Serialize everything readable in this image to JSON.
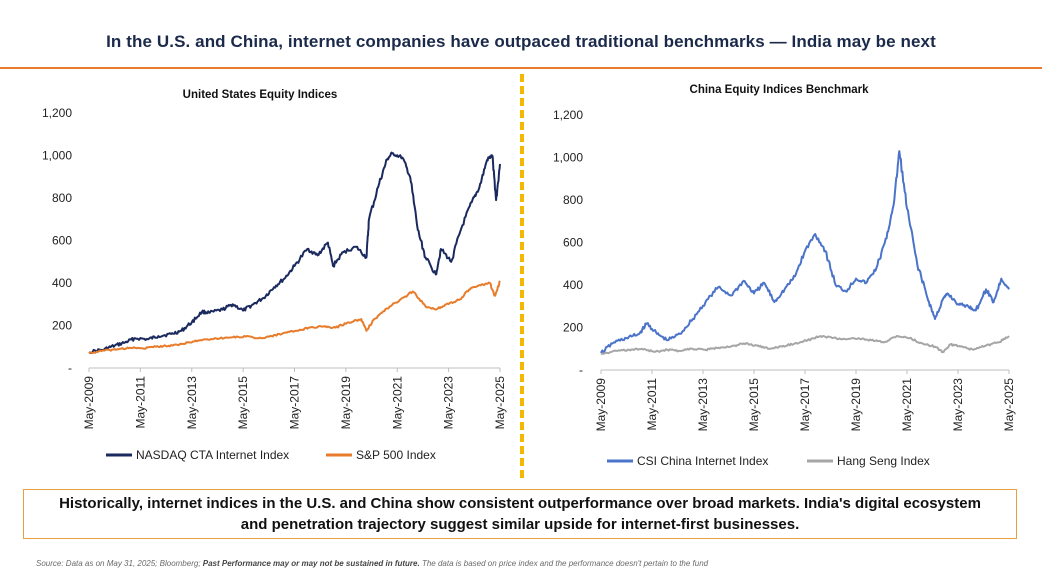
{
  "title": "In the U.S. and China, internet companies have outpaced traditional benchmarks — India may be next",
  "callout": "Historically, internet indices in the U.S. and China show consistent outperformance over broad markets. India's digital ecosystem and penetration trajectory suggest similar upside for internet-first businesses.",
  "source": {
    "prefix": "Source: Data as on May 31, 2025; Bloomberg; ",
    "emphasis": "Past Performance may or may not be sustained in future.",
    "suffix": " The data is based on price index and the performance doesn't pertain to the fund"
  },
  "colors": {
    "accent_orange": "#e87c2b",
    "divider_yellow": "#f5b800",
    "callout_border": "#e6a23c"
  },
  "chart_data": [
    {
      "type": "line",
      "title": "United States Equity Indices",
      "ylim": [
        0,
        1200
      ],
      "y_ticks": [
        "-",
        "200",
        "400",
        "600",
        "800",
        "1,000",
        "1,200"
      ],
      "x_ticks": [
        "May-2009",
        "May-2011",
        "May-2013",
        "May-2015",
        "May-2017",
        "May-2019",
        "May-2021",
        "May-2023",
        "May-2025"
      ],
      "xlim": [
        2009.4,
        2025.4
      ],
      "grid": false,
      "legend": "bottom",
      "series": [
        {
          "name": "NASDAQ CTA Internet Index",
          "color": "#1b2a5e",
          "x": [
            2009.4,
            2010.0,
            2010.4,
            2010.8,
            2011.2,
            2011.7,
            2012.1,
            2012.6,
            2013.0,
            2013.4,
            2013.8,
            2014.1,
            2014.6,
            2015.0,
            2015.4,
            2015.8,
            2016.2,
            2016.6,
            2017.0,
            2017.4,
            2017.9,
            2018.3,
            2018.7,
            2018.9,
            2019.3,
            2019.8,
            2020.2,
            2020.3,
            2020.7,
            2021.0,
            2021.2,
            2021.6,
            2021.9,
            2022.2,
            2022.5,
            2022.9,
            2023.1,
            2023.5,
            2023.9,
            2024.3,
            2024.6,
            2024.9,
            2025.1,
            2025.25,
            2025.4
          ],
          "values": [
            75,
            88,
            105,
            120,
            140,
            135,
            150,
            160,
            175,
            215,
            265,
            260,
            275,
            300,
            270,
            300,
            330,
            380,
            420,
            480,
            560,
            530,
            590,
            480,
            545,
            570,
            520,
            700,
            870,
            980,
            1010,
            990,
            900,
            650,
            520,
            440,
            560,
            500,
            660,
            780,
            850,
            980,
            1000,
            790,
            960
          ]
        },
        {
          "name": "S&P 500 Index",
          "color": "#e87c2b",
          "x": [
            2009.4,
            2010.0,
            2010.5,
            2011.0,
            2011.5,
            2012.0,
            2012.5,
            2013.0,
            2013.5,
            2014.0,
            2014.5,
            2015.0,
            2015.5,
            2016.0,
            2016.5,
            2017.0,
            2017.5,
            2018.0,
            2018.5,
            2019.0,
            2019.5,
            2020.0,
            2020.2,
            2020.5,
            2021.0,
            2021.5,
            2022.0,
            2022.5,
            2022.9,
            2023.3,
            2023.8,
            2024.2,
            2024.6,
            2025.0,
            2025.2,
            2025.4
          ],
          "values": [
            70,
            82,
            88,
            95,
            92,
            100,
            105,
            113,
            125,
            135,
            140,
            145,
            148,
            140,
            150,
            165,
            175,
            190,
            195,
            190,
            215,
            230,
            175,
            230,
            280,
            320,
            360,
            290,
            275,
            300,
            320,
            370,
            390,
            400,
            340,
            410
          ]
        }
      ]
    },
    {
      "type": "line",
      "title": "China Equity Indices Benchmark",
      "ylim": [
        0,
        1200
      ],
      "y_ticks": [
        "-",
        "200",
        "400",
        "600",
        "800",
        "1,000",
        "1,200"
      ],
      "x_ticks": [
        "May-2009",
        "May-2011",
        "May-2013",
        "May-2015",
        "May-2017",
        "May-2019",
        "May-2021",
        "May-2023",
        "May-2025"
      ],
      "xlim": [
        2009.4,
        2025.4
      ],
      "grid": false,
      "legend": "bottom",
      "series": [
        {
          "name": "CSI China Internet Index",
          "color": "#4a73c9",
          "x": [
            2009.4,
            2009.9,
            2010.4,
            2010.9,
            2011.2,
            2011.6,
            2012.0,
            2012.5,
            2013.0,
            2013.5,
            2014.0,
            2014.5,
            2015.0,
            2015.4,
            2015.8,
            2016.2,
            2016.6,
            2017.0,
            2017.4,
            2017.8,
            2018.2,
            2018.6,
            2019.0,
            2019.4,
            2019.8,
            2020.2,
            2020.6,
            2020.9,
            2021.1,
            2021.4,
            2021.8,
            2022.2,
            2022.5,
            2022.8,
            2023.0,
            2023.4,
            2023.8,
            2024.1,
            2024.5,
            2024.8,
            2025.1,
            2025.4
          ],
          "values": [
            80,
            130,
            150,
            170,
            220,
            170,
            140,
            170,
            240,
            320,
            390,
            350,
            420,
            360,
            410,
            320,
            380,
            440,
            560,
            640,
            560,
            400,
            370,
            430,
            410,
            480,
            620,
            800,
            1030,
            760,
            500,
            340,
            240,
            330,
            360,
            310,
            300,
            280,
            380,
            320,
            430,
            380
          ]
        },
        {
          "name": "Hang Seng Index",
          "color": "#a6a6a6",
          "x": [
            2009.4,
            2010.0,
            2010.5,
            2011.0,
            2011.5,
            2012.0,
            2012.5,
            2013.0,
            2013.5,
            2014.0,
            2014.5,
            2015.0,
            2015.5,
            2016.0,
            2016.5,
            2017.0,
            2017.5,
            2018.0,
            2018.5,
            2019.0,
            2019.5,
            2020.0,
            2020.5,
            2021.0,
            2021.5,
            2022.0,
            2022.5,
            2022.8,
            2023.1,
            2023.5,
            2024.0,
            2024.5,
            2025.0,
            2025.4
          ],
          "values": [
            75,
            90,
            95,
            100,
            85,
            95,
            90,
            100,
            95,
            105,
            110,
            125,
            115,
            100,
            110,
            125,
            140,
            160,
            150,
            145,
            150,
            140,
            130,
            160,
            150,
            125,
            110,
            85,
            120,
            110,
            95,
            115,
            130,
            160
          ]
        }
      ]
    }
  ]
}
